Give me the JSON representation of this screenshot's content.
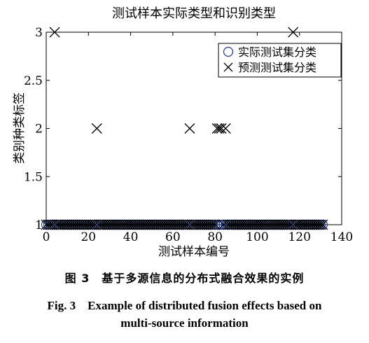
{
  "chart_data": {
    "type": "scatter",
    "title": "测试样本实际类型和识别类型",
    "xlabel": "测试样本编号",
    "ylabel": "类别种类标签",
    "xlim": [
      0,
      140
    ],
    "ylim": [
      1,
      3
    ],
    "xticks": [
      0,
      20,
      40,
      60,
      80,
      100,
      120,
      140
    ],
    "yticks": [
      1,
      1.5,
      2,
      2.5,
      3
    ],
    "xtick_labels": [
      "0",
      "20",
      "40",
      "60",
      "80",
      "100",
      "120",
      "140"
    ],
    "ytick_labels": [
      "1",
      "1.5",
      "2",
      "2.5",
      "3"
    ],
    "grid": false,
    "legend_position": "top-right",
    "series": [
      {
        "name": "实际测试集分类",
        "marker": "circle",
        "color": "#1f3c99",
        "points": [
          [
            0,
            1
          ],
          [
            1,
            1
          ],
          [
            2,
            1
          ],
          [
            3,
            1
          ],
          [
            4,
            1
          ],
          [
            5,
            1
          ],
          [
            6,
            1
          ],
          [
            7,
            1
          ],
          [
            8,
            1
          ],
          [
            9,
            1
          ],
          [
            10,
            1
          ],
          [
            11,
            1
          ],
          [
            12,
            1
          ],
          [
            13,
            1
          ],
          [
            14,
            1
          ],
          [
            15,
            1
          ],
          [
            16,
            1
          ],
          [
            17,
            1
          ],
          [
            18,
            1
          ],
          [
            19,
            1
          ],
          [
            20,
            1
          ],
          [
            21,
            1
          ],
          [
            22,
            1
          ],
          [
            23,
            1
          ],
          [
            24,
            1
          ],
          [
            25,
            1
          ],
          [
            26,
            1
          ],
          [
            27,
            1
          ],
          [
            28,
            1
          ],
          [
            29,
            1
          ],
          [
            30,
            1
          ],
          [
            31,
            1
          ],
          [
            32,
            1
          ],
          [
            33,
            1
          ],
          [
            34,
            1
          ],
          [
            35,
            1
          ],
          [
            36,
            1
          ],
          [
            37,
            1
          ],
          [
            38,
            1
          ],
          [
            39,
            1
          ],
          [
            40,
            1
          ],
          [
            41,
            1
          ],
          [
            42,
            1
          ],
          [
            43,
            1
          ],
          [
            44,
            1
          ],
          [
            45,
            1
          ],
          [
            46,
            1
          ],
          [
            47,
            1
          ],
          [
            48,
            1
          ],
          [
            49,
            1
          ],
          [
            50,
            1
          ],
          [
            51,
            1
          ],
          [
            52,
            1
          ],
          [
            53,
            1
          ],
          [
            54,
            1
          ],
          [
            55,
            1
          ],
          [
            56,
            1
          ],
          [
            57,
            1
          ],
          [
            58,
            1
          ],
          [
            59,
            1
          ],
          [
            60,
            1
          ],
          [
            61,
            1
          ],
          [
            62,
            1
          ],
          [
            63,
            1
          ],
          [
            64,
            1
          ],
          [
            65,
            1
          ],
          [
            66,
            1
          ],
          [
            67,
            1
          ],
          [
            68,
            1
          ],
          [
            69,
            1
          ],
          [
            70,
            1
          ],
          [
            71,
            1
          ],
          [
            72,
            1
          ],
          [
            73,
            1
          ],
          [
            74,
            1
          ],
          [
            75,
            1
          ],
          [
            76,
            1
          ],
          [
            77,
            1
          ],
          [
            78,
            1
          ],
          [
            79,
            1
          ],
          [
            80,
            1
          ],
          [
            81,
            1
          ],
          [
            82,
            1
          ],
          [
            83,
            1
          ],
          [
            84,
            1
          ],
          [
            85,
            1
          ],
          [
            86,
            1
          ],
          [
            87,
            1
          ],
          [
            88,
            1
          ],
          [
            89,
            1
          ],
          [
            90,
            1
          ],
          [
            91,
            1
          ],
          [
            92,
            1
          ],
          [
            93,
            1
          ],
          [
            94,
            1
          ],
          [
            95,
            1
          ],
          [
            96,
            1
          ],
          [
            97,
            1
          ],
          [
            98,
            1
          ],
          [
            99,
            1
          ],
          [
            100,
            1
          ],
          [
            101,
            1
          ],
          [
            102,
            1
          ],
          [
            103,
            1
          ],
          [
            104,
            1
          ],
          [
            105,
            1
          ],
          [
            106,
            1
          ],
          [
            107,
            1
          ],
          [
            108,
            1
          ],
          [
            109,
            1
          ],
          [
            110,
            1
          ],
          [
            111,
            1
          ],
          [
            112,
            1
          ],
          [
            113,
            1
          ],
          [
            114,
            1
          ],
          [
            115,
            1
          ],
          [
            116,
            1
          ],
          [
            117,
            1
          ],
          [
            118,
            1
          ],
          [
            119,
            1
          ],
          [
            120,
            1
          ],
          [
            121,
            1
          ],
          [
            122,
            1
          ],
          [
            123,
            1
          ],
          [
            124,
            1
          ],
          [
            125,
            1
          ],
          [
            126,
            1
          ],
          [
            127,
            1
          ],
          [
            128,
            1
          ],
          [
            129,
            1
          ],
          [
            130,
            1
          ],
          [
            131,
            1
          ]
        ]
      },
      {
        "name": "预测测试集分类",
        "marker": "x",
        "color": "#000000",
        "points": [
          [
            0,
            1
          ],
          [
            1,
            1
          ],
          [
            2,
            1
          ],
          [
            3,
            1
          ],
          [
            4,
            3
          ],
          [
            5,
            1
          ],
          [
            6,
            1
          ],
          [
            7,
            1
          ],
          [
            8,
            1
          ],
          [
            9,
            1
          ],
          [
            10,
            1
          ],
          [
            11,
            1
          ],
          [
            12,
            1
          ],
          [
            13,
            1
          ],
          [
            14,
            1
          ],
          [
            15,
            1
          ],
          [
            16,
            1
          ],
          [
            17,
            1
          ],
          [
            18,
            1
          ],
          [
            19,
            1
          ],
          [
            20,
            1
          ],
          [
            21,
            1
          ],
          [
            22,
            1
          ],
          [
            23,
            1
          ],
          [
            24,
            2
          ],
          [
            25,
            1
          ],
          [
            26,
            1
          ],
          [
            27,
            1
          ],
          [
            28,
            1
          ],
          [
            29,
            1
          ],
          [
            30,
            1
          ],
          [
            31,
            1
          ],
          [
            32,
            1
          ],
          [
            33,
            1
          ],
          [
            34,
            1
          ],
          [
            35,
            1
          ],
          [
            36,
            1
          ],
          [
            37,
            1
          ],
          [
            38,
            1
          ],
          [
            39,
            1
          ],
          [
            40,
            1
          ],
          [
            41,
            1
          ],
          [
            42,
            1
          ],
          [
            43,
            1
          ],
          [
            44,
            1
          ],
          [
            45,
            1
          ],
          [
            46,
            1
          ],
          [
            47,
            1
          ],
          [
            48,
            1
          ],
          [
            49,
            1
          ],
          [
            50,
            1
          ],
          [
            51,
            1
          ],
          [
            52,
            1
          ],
          [
            53,
            1
          ],
          [
            54,
            1
          ],
          [
            55,
            1
          ],
          [
            56,
            1
          ],
          [
            57,
            1
          ],
          [
            58,
            1
          ],
          [
            59,
            1
          ],
          [
            60,
            1
          ],
          [
            61,
            1
          ],
          [
            62,
            1
          ],
          [
            63,
            1
          ],
          [
            64,
            1
          ],
          [
            65,
            1
          ],
          [
            66,
            1
          ],
          [
            67,
            1
          ],
          [
            68,
            2
          ],
          [
            69,
            1
          ],
          [
            70,
            1
          ],
          [
            71,
            1
          ],
          [
            72,
            1
          ],
          [
            73,
            1
          ],
          [
            74,
            1
          ],
          [
            75,
            1
          ],
          [
            76,
            1
          ],
          [
            77,
            1
          ],
          [
            78,
            1
          ],
          [
            79,
            1
          ],
          [
            80,
            1
          ],
          [
            81,
            2
          ],
          [
            82,
            2
          ],
          [
            83,
            2
          ],
          [
            84,
            1
          ],
          [
            85,
            2
          ],
          [
            86,
            1
          ],
          [
            87,
            1
          ],
          [
            88,
            1
          ],
          [
            89,
            1
          ],
          [
            90,
            1
          ],
          [
            91,
            1
          ],
          [
            92,
            1
          ],
          [
            93,
            1
          ],
          [
            94,
            1
          ],
          [
            95,
            1
          ],
          [
            96,
            1
          ],
          [
            97,
            1
          ],
          [
            98,
            1
          ],
          [
            99,
            1
          ],
          [
            100,
            1
          ],
          [
            101,
            1
          ],
          [
            102,
            1
          ],
          [
            103,
            1
          ],
          [
            104,
            1
          ],
          [
            105,
            1
          ],
          [
            106,
            1
          ],
          [
            107,
            1
          ],
          [
            108,
            1
          ],
          [
            109,
            1
          ],
          [
            110,
            1
          ],
          [
            111,
            1
          ],
          [
            112,
            1
          ],
          [
            113,
            1
          ],
          [
            114,
            1
          ],
          [
            115,
            1
          ],
          [
            116,
            1
          ],
          [
            117,
            3
          ],
          [
            118,
            1
          ],
          [
            119,
            1
          ],
          [
            120,
            1
          ],
          [
            121,
            1
          ],
          [
            122,
            1
          ],
          [
            123,
            1
          ],
          [
            124,
            1
          ],
          [
            125,
            1
          ],
          [
            126,
            1
          ],
          [
            127,
            1
          ],
          [
            128,
            1
          ],
          [
            129,
            1
          ],
          [
            130,
            1
          ],
          [
            131,
            1
          ]
        ]
      }
    ]
  },
  "caption": {
    "zh": "图 3　基于多源信息的分布式融合效果的实例",
    "en_line1": "Fig. 3　Example of distributed fusion effects based on",
    "en_line2": "multi-source information"
  }
}
